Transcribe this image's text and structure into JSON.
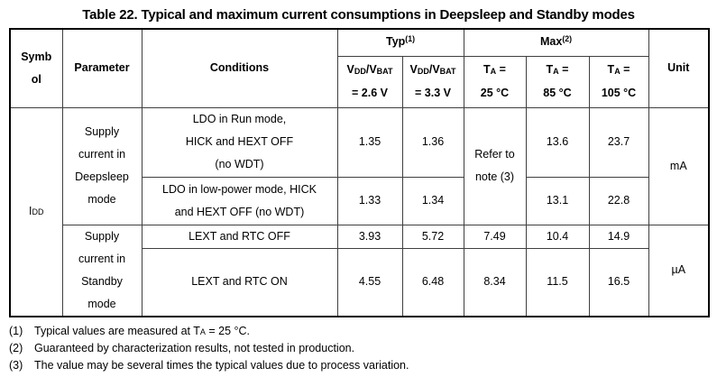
{
  "title": "Table 22. Typical and maximum current consumptions in Deepsleep and Standby modes",
  "table": {
    "header": {
      "symbol": "Symb\nol",
      "parameter": "Parameter",
      "conditions": "Conditions",
      "typ_group": "Typ^(1)^",
      "max_group": "Max^(2)^",
      "typ_cols": [
        "V~DD~/V~BAT~\n= 2.6 V",
        "V~DD~/V~BAT~\n= 3.3 V"
      ],
      "max_cols": [
        "T~A~ =\n25 °C",
        "T~A~ =\n85 °C",
        "T~A~ =\n105 °C"
      ],
      "unit": "Unit"
    },
    "symbol": "I~DD~",
    "parameters": [
      "Supply\ncurrent in\nDeepsleep\nmode",
      "Supply\ncurrent in\nStandby\nmode"
    ],
    "units": [
      "mA",
      "µA"
    ],
    "note_ref": "Refer to\nnote (3)",
    "rows": [
      {
        "conditions": "LDO in Run mode,\nHICK and HEXT OFF\n(no WDT)",
        "typ_2v6": "1.35",
        "typ_3v3": "1.36",
        "max_85": "13.6",
        "max_105": "23.7"
      },
      {
        "conditions": "LDO in low-power mode, HICK\nand HEXT OFF (no WDT)",
        "typ_2v6": "1.33",
        "typ_3v3": "1.34",
        "max_85": "13.1",
        "max_105": "22.8"
      },
      {
        "conditions": "LEXT and RTC OFF",
        "typ_2v6": "3.93",
        "typ_3v3": "5.72",
        "max_25": "7.49",
        "max_85": "10.4",
        "max_105": "14.9"
      },
      {
        "conditions": "LEXT and RTC ON",
        "typ_2v6": "4.55",
        "typ_3v3": "6.48",
        "max_25": "8.34",
        "max_85": "11.5",
        "max_105": "16.5"
      }
    ],
    "footnotes": [
      {
        "num": "(1)",
        "text": "Typical values are measured at T~A~ = 25 °C."
      },
      {
        "num": "(2)",
        "text": "Guaranteed by characterization results, not tested in production."
      },
      {
        "num": "(3)",
        "text": "The value may be several times the typical values due to process variation."
      }
    ]
  }
}
